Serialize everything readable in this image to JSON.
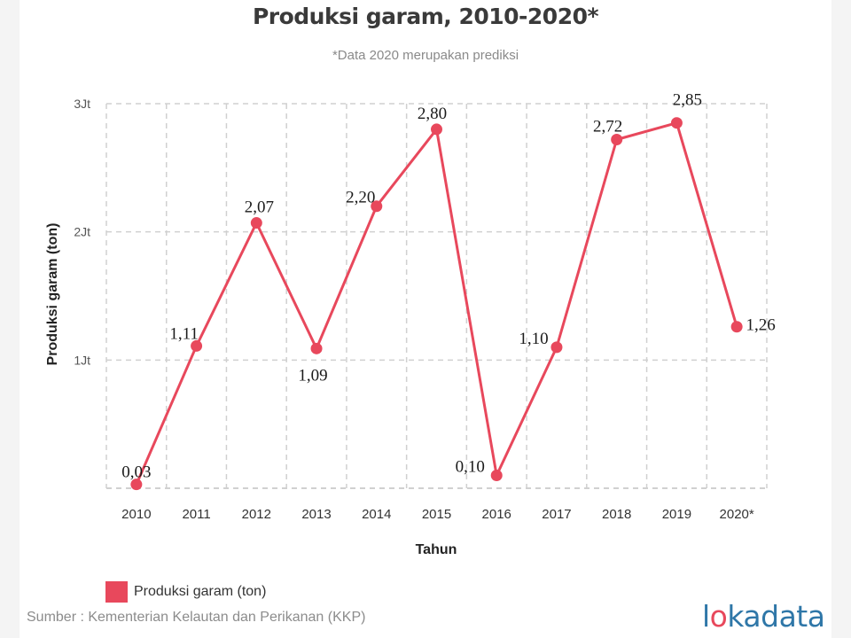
{
  "title": "Produksi garam, 2010-2020*",
  "subtitle": "*Data 2020 merupakan prediksi",
  "colors": {
    "series": "#e8485c",
    "grid": "#d0d0d0",
    "logo": "#2f77a8"
  },
  "chart_data": {
    "type": "line",
    "title": "Produksi garam, 2010-2020*",
    "subtitle": "*Data 2020 merupakan prediksi",
    "xlabel": "Tahun",
    "ylabel": "Produksi garam (ton)",
    "categories": [
      "2010",
      "2011",
      "2012",
      "2013",
      "2014",
      "2015",
      "2016",
      "2017",
      "2018",
      "2019",
      "2020*"
    ],
    "series": [
      {
        "name": "Produksi garam (ton)",
        "values": [
          0.03,
          1.11,
          2.07,
          1.09,
          2.2,
          2.8,
          0.1,
          1.1,
          2.72,
          2.85,
          1.26
        ],
        "labels": [
          "0,03",
          "1,11",
          "2,07",
          "1,09",
          "2,20",
          "2,80",
          "0,10",
          "1,10",
          "2,72",
          "2,85",
          "1,26"
        ]
      }
    ],
    "ylim": [
      0,
      3
    ],
    "yticks": [
      1,
      2,
      3
    ],
    "ytick_labels": [
      "1Jt",
      "2Jt",
      "3Jt"
    ],
    "grid": true,
    "legend": "bottom-left"
  },
  "legend": {
    "label": "Produksi garam (ton)"
  },
  "source": "Sumber : Kementerian Kelautan dan Perikanan (KKP)",
  "logo": {
    "prefix": "l",
    "o": "o",
    "suffix": "kadata"
  }
}
